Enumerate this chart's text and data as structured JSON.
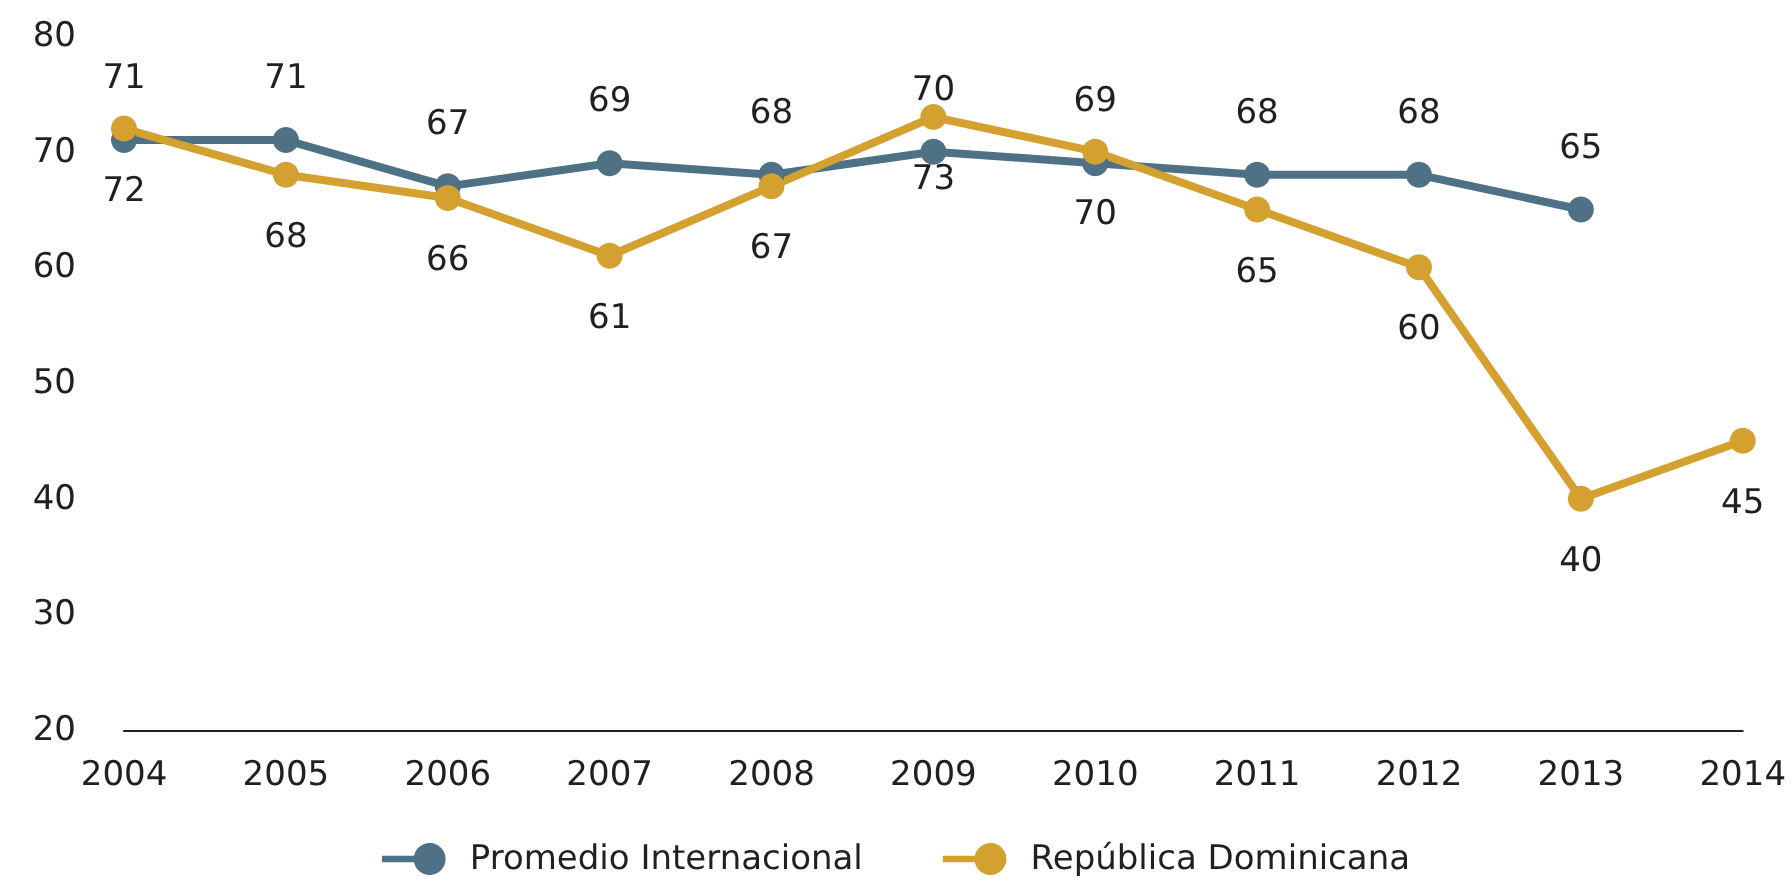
{
  "chart_data": {
    "type": "line",
    "categories": [
      "2004",
      "2005",
      "2006",
      "2007",
      "2008",
      "2009",
      "2010",
      "2011",
      "2012",
      "2013",
      "2014"
    ],
    "series": [
      {
        "name": "Promedio Internacional",
        "color": "#4e7186",
        "values": [
          71,
          71,
          67,
          69,
          68,
          70,
          69,
          68,
          68,
          65,
          null
        ]
      },
      {
        "name": "República Dominicana",
        "color": "#d4a02f",
        "values": [
          72,
          68,
          66,
          61,
          67,
          73,
          70,
          65,
          60,
          40,
          45
        ]
      }
    ],
    "ylim": [
      20,
      80
    ],
    "yticks": [
      20,
      30,
      40,
      50,
      60,
      70,
      80
    ],
    "grid": false,
    "legend": "bottom",
    "marker": "circle",
    "line_style": "solid",
    "data_labels": true
  }
}
